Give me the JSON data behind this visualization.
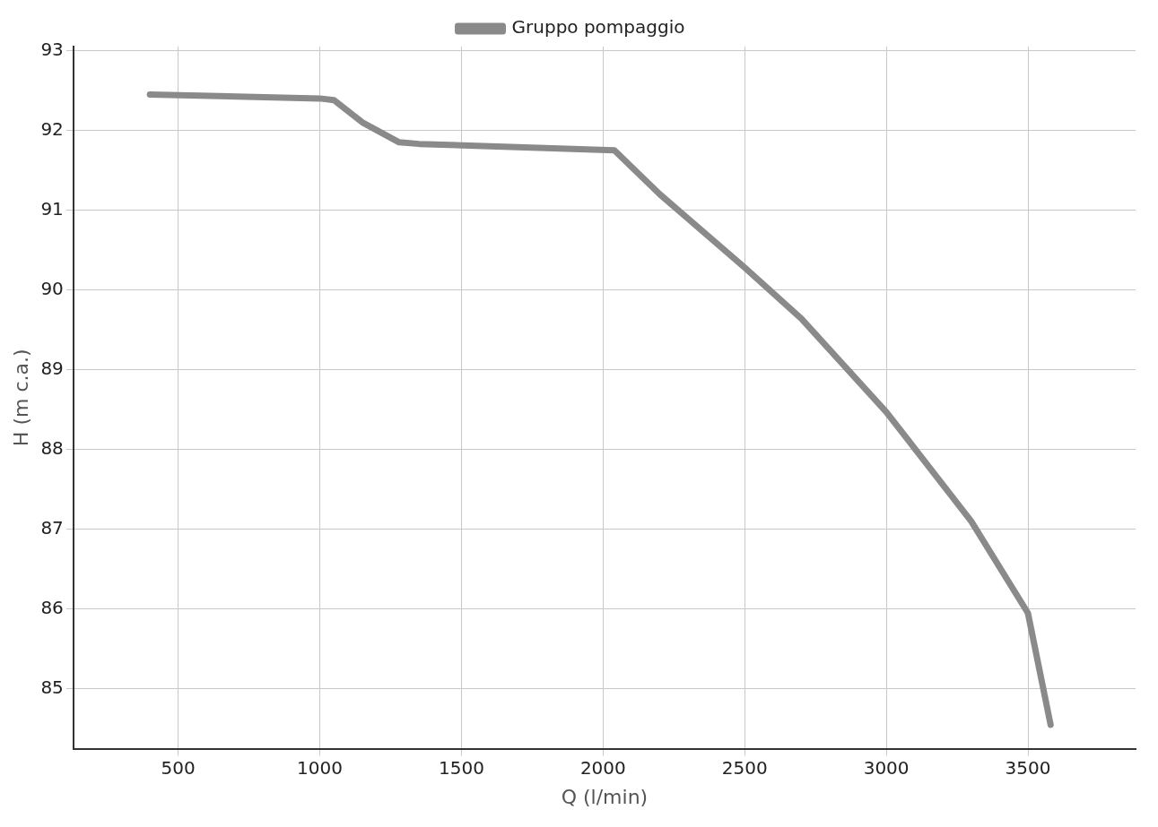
{
  "chart_data": {
    "type": "line",
    "xlabel": "Q (l/min)",
    "ylabel": "H (m c.a.)",
    "series": [
      {
        "name": "Gruppo pompaggio",
        "color": "#8a8a8a",
        "x": [
          400,
          1000,
          1050,
          1150,
          1280,
          1350,
          2040,
          2200,
          2500,
          2700,
          3000,
          3300,
          3500,
          3580
        ],
        "values": [
          92.45,
          92.4,
          92.38,
          92.1,
          91.85,
          91.83,
          91.75,
          91.2,
          90.28,
          89.64,
          88.47,
          87.1,
          85.95,
          84.55
        ]
      }
    ],
    "xlim": [
      130,
      3880
    ],
    "xticks": [
      500,
      1000,
      1500,
      2000,
      2500,
      3000,
      3500
    ],
    "ylim": [
      84.25,
      93.05
    ],
    "yticks": [
      85,
      86,
      87,
      88,
      89,
      90,
      91,
      92,
      93
    ],
    "grid": true,
    "legend": "top",
    "marker": "none",
    "line_style": "solid"
  }
}
